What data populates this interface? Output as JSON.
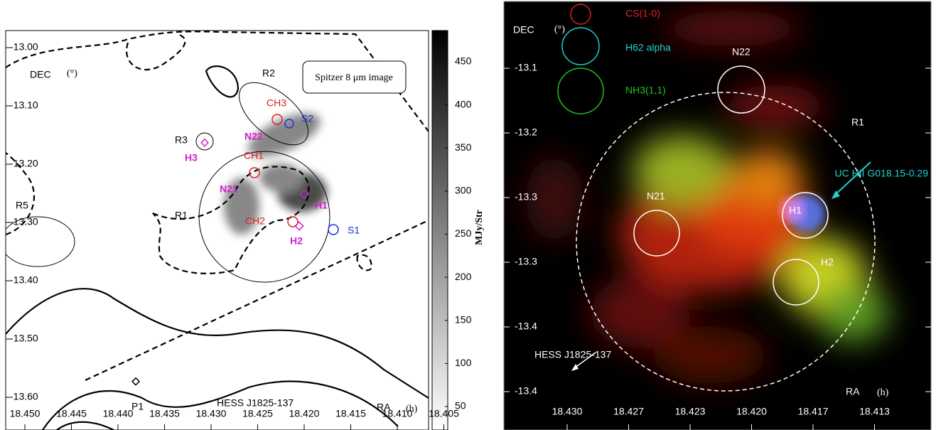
{
  "left_panel": {
    "dec_label": "DEC",
    "dec_unit": "(°)",
    "ra_label": "RA",
    "ra_unit": "(h)",
    "yticks": [
      "-13.00",
      "-13.10",
      "-13.20",
      "-13.30",
      "-13.40",
      "-13.50",
      "-13.60"
    ],
    "xticks": [
      "18.450",
      "18.445",
      "18.440",
      "18.435",
      "18.430",
      "18.425",
      "18.420",
      "18.415",
      "18.410",
      "18.405"
    ],
    "image_label": "Spitzer 8 μm image",
    "annotations": [
      "R2",
      "CH3",
      "S2",
      "R3",
      "H3",
      "N22",
      "CH1",
      "N21",
      "H1",
      "R1",
      "R5",
      "CH2",
      "S1",
      "H2",
      "P1",
      "HESS J1825-137"
    ],
    "colorbar": {
      "label": "MJy/Str",
      "ticks": [
        50,
        100,
        150,
        200,
        250,
        300,
        350,
        400,
        450
      ]
    }
  },
  "right_panel": {
    "dec_label": "DEC",
    "dec_unit": "(°)",
    "ra_label": "RA",
    "ra_unit": "(h)",
    "yticks": [
      "-13.1",
      "-13.2",
      "-13.3",
      "-13.3",
      "-13.4",
      "-13.4"
    ],
    "xticks": [
      "18.430",
      "18.427",
      "18.423",
      "18.420",
      "18.417",
      "18.413"
    ],
    "legend": [
      "CS(1-0)",
      "H62 alpha",
      "NH3(1,1)"
    ],
    "annotations": [
      "N22",
      "R1",
      "UC HII G018.15-0.29",
      "N21",
      "H1",
      "H2",
      "HESS J1825-137"
    ]
  }
}
